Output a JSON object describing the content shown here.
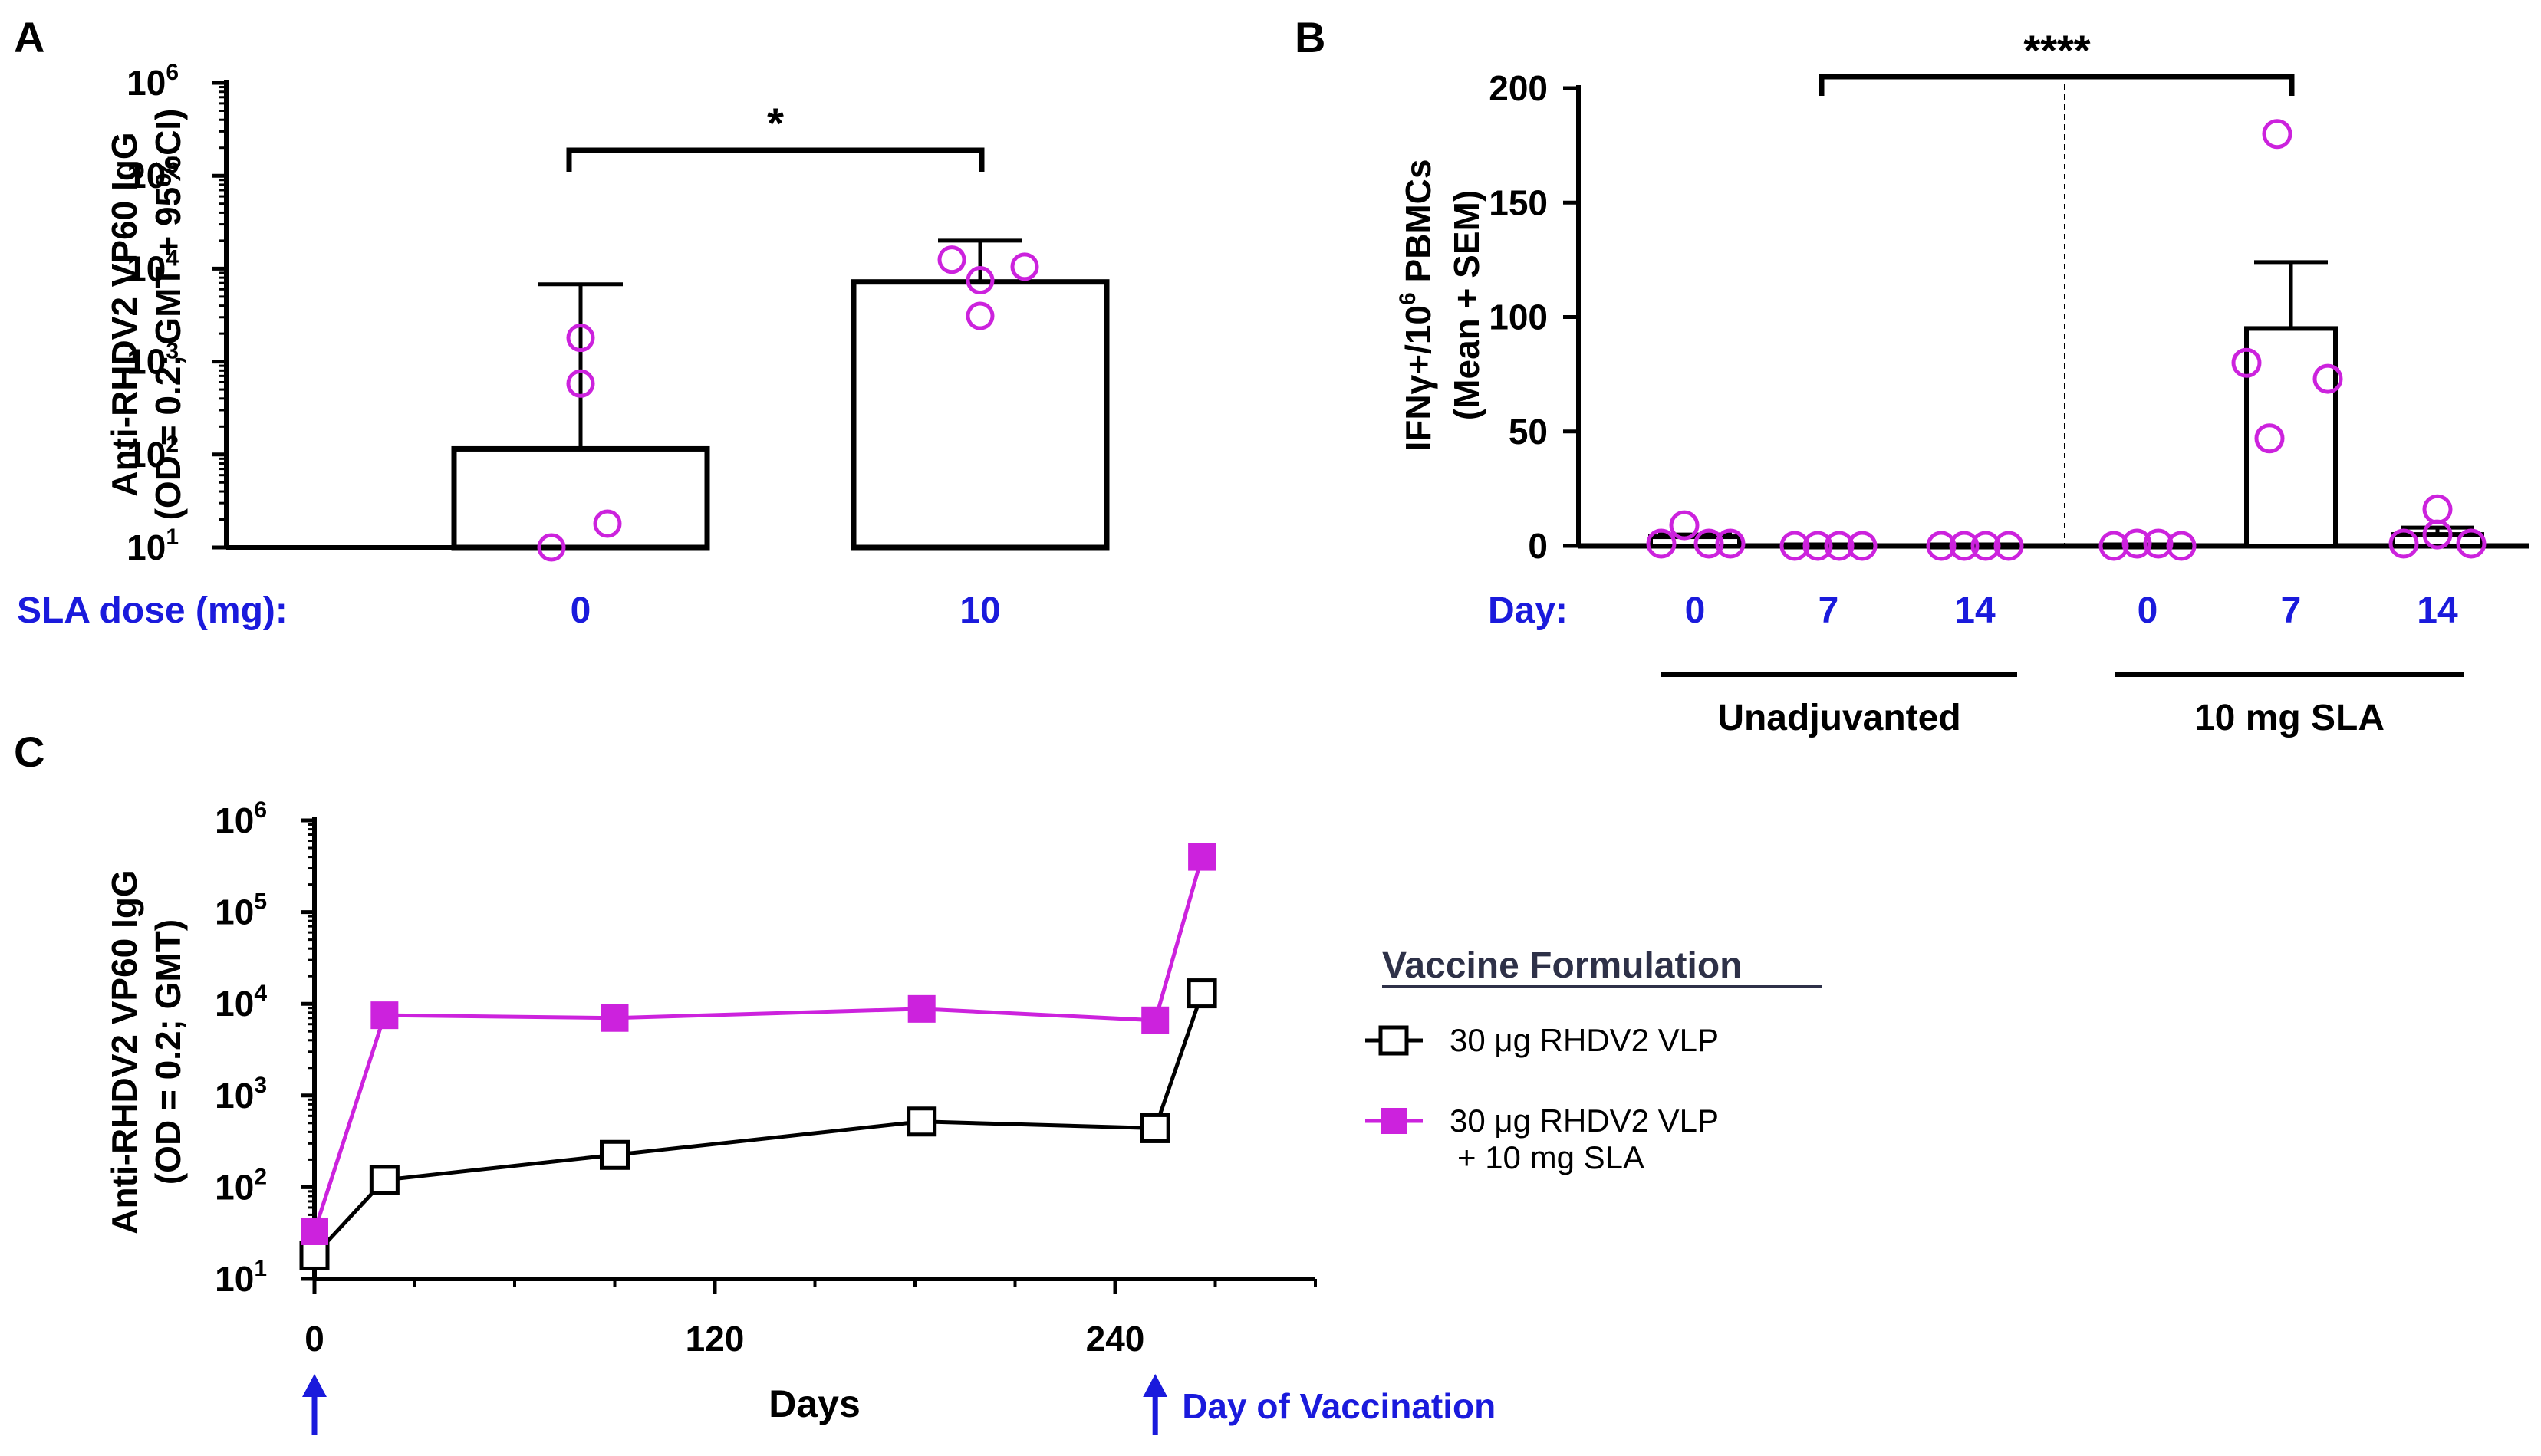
{
  "colors": {
    "magenta": "#cc22dd",
    "blue": "#1a1adc",
    "black": "#000000",
    "legend_title": "#2e3148"
  },
  "chart_data": [
    {
      "panel": "A",
      "type": "bar",
      "yscale": "log",
      "ylabel_line1": "Anti-RHDV2 VP60 IgG",
      "ylabel_line2": "(OD = 0.2; GMT + 95%CI)",
      "ylim": [
        10,
        1000000
      ],
      "yticks": [
        {
          "base": "10",
          "exp": "1"
        },
        {
          "base": "10",
          "exp": "2"
        },
        {
          "base": "10",
          "exp": "3"
        },
        {
          "base": "10",
          "exp": "4"
        },
        {
          "base": "10",
          "exp": "5"
        },
        {
          "base": "10",
          "exp": "6"
        }
      ],
      "x_row_label": "SLA dose (mg):",
      "categories": [
        "0",
        "10"
      ],
      "values": [
        115,
        7200
      ],
      "error_upper": [
        6800,
        20000
      ],
      "points": [
        [
          1800,
          580,
          18,
          10
        ],
        [
          12500,
          7500,
          10500,
          3100
        ]
      ],
      "significance": "*"
    },
    {
      "panel": "B",
      "type": "bar",
      "ylabel_line1": "IFNγ+/10",
      "ylabel_sup": "6",
      "ylabel_line1_tail": " PBMCs",
      "ylabel_line2": "(Mean + SEM)",
      "ylim": [
        0,
        200
      ],
      "yticks": [
        "0",
        "50",
        "100",
        "150",
        "200"
      ],
      "x_row_label": "Day:",
      "categories": [
        "0",
        "7",
        "14",
        "0",
        "7",
        "14"
      ],
      "groups": [
        "Unadjuvanted",
        "10 mg SLA"
      ],
      "values": [
        4,
        0,
        0,
        0,
        95,
        5
      ],
      "error_upper": [
        5,
        0,
        0,
        0,
        124,
        8
      ],
      "points": [
        [
          1,
          9,
          1,
          1
        ],
        [
          0,
          0,
          0,
          0
        ],
        [
          0,
          0,
          0,
          0
        ],
        [
          0,
          1,
          1,
          0
        ],
        [
          80,
          180,
          47,
          73
        ],
        [
          1,
          16,
          5,
          1
        ]
      ],
      "significance": "****"
    },
    {
      "panel": "C",
      "type": "line",
      "yscale": "log",
      "ylabel_line1": "Anti-RHDV2 VP60 IgG",
      "ylabel_line2": "(OD = 0.2; GMT)",
      "xlabel": "Days",
      "xlim": [
        0,
        300
      ],
      "xticks": [
        "0",
        "120",
        "240"
      ],
      "ylim": [
        10,
        1000000
      ],
      "yticks": [
        {
          "base": "10",
          "exp": "1"
        },
        {
          "base": "10",
          "exp": "2"
        },
        {
          "base": "10",
          "exp": "3"
        },
        {
          "base": "10",
          "exp": "4"
        },
        {
          "base": "10",
          "exp": "5"
        },
        {
          "base": "10",
          "exp": "6"
        }
      ],
      "vaccination_days": [
        0,
        252
      ],
      "vaccination_label": "Day of Vaccination",
      "legend_title": "Vaccine Formulation",
      "series": [
        {
          "name_line1": "30 μg RHDV2 VLP",
          "name_line2": "",
          "color": "#000000",
          "marker": "open-square",
          "x": [
            0,
            21,
            90,
            182,
            252,
            266
          ],
          "values": [
            18,
            120,
            225,
            520,
            440,
            13000
          ]
        },
        {
          "name_line1": "30 μg RHDV2 VLP",
          "name_line2": "+ 10 mg SLA",
          "color": "#cc22dd",
          "marker": "filled-square",
          "x": [
            0,
            21,
            90,
            182,
            252,
            266
          ],
          "values": [
            33,
            7500,
            7000,
            8800,
            6600,
            400000
          ]
        }
      ]
    }
  ]
}
